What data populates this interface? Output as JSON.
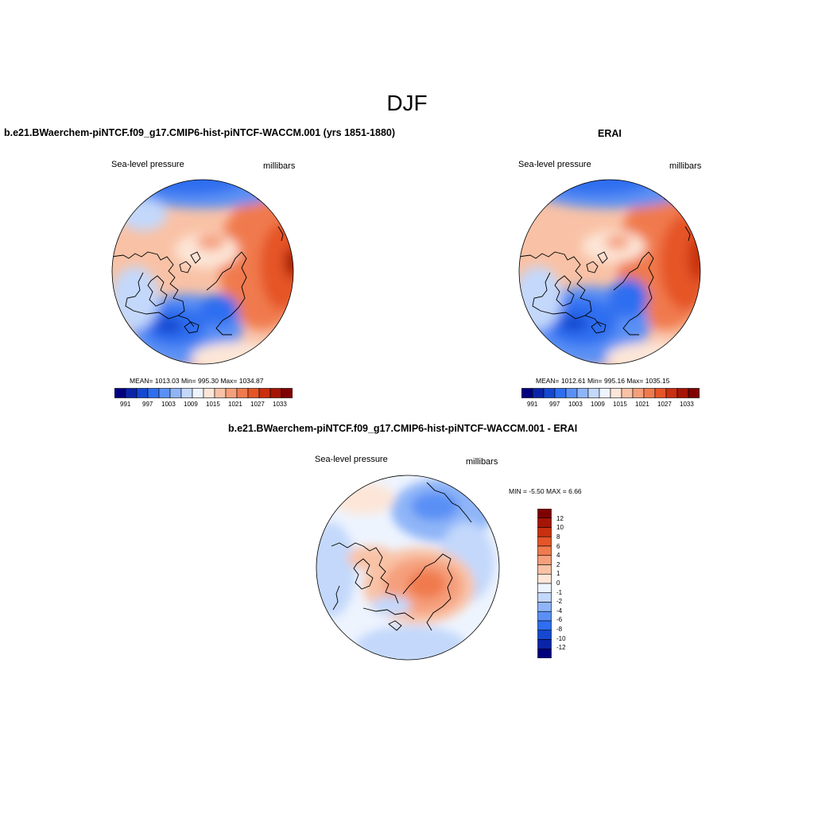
{
  "season": "DJF",
  "panels": [
    {
      "title": "b.e21.BWaerchem-piNTCF.f09_g17.CMIP6-hist-piNTCF-WACCM.001 (yrs 1851-1880)",
      "left_string": "Sea-level pressure",
      "right_string": "millibars",
      "stats": "MEAN= 1013.03   Min= 995.30   Max= 1034.87",
      "colorbar_labels": [
        "991",
        "997",
        "1003",
        "1009",
        "1015",
        "1021",
        "1027",
        "1033"
      ]
    },
    {
      "title": "ERAI",
      "left_string": "Sea-level pressure",
      "right_string": "millibars",
      "stats": "MEAN= 1012.61   Min= 995.16   Max= 1035.15",
      "colorbar_labels": [
        "991",
        "997",
        "1003",
        "1009",
        "1015",
        "1021",
        "1027",
        "1033"
      ]
    },
    {
      "title": "b.e21.BWaerchem-piNTCF.f09_g17.CMIP6-hist-piNTCF-WACCM.001 - ERAI",
      "left_string": "Sea-level pressure",
      "right_string": "millibars",
      "stats": "MIN =  -5.50 MAX =   6.66",
      "colorbar_labels": [
        "12",
        "10",
        "8",
        "6",
        "4",
        "2",
        "1",
        "0",
        "-1",
        "-2",
        "-4",
        "-6",
        "-8",
        "-10",
        "-12"
      ]
    }
  ],
  "colors": {
    "abs_scale": [
      "#00007f",
      "#0a24a8",
      "#1548d0",
      "#2e6ef0",
      "#5a90f5",
      "#8fb5f8",
      "#c3d8fb",
      "#eef4fe",
      "#fde6d8",
      "#f9c2a6",
      "#f59f7b",
      "#f07a4e",
      "#e55528",
      "#c8300f",
      "#a51505",
      "#7f0000"
    ],
    "diff_scale": [
      "#7f0000",
      "#a51505",
      "#c8300f",
      "#e55528",
      "#f07a4e",
      "#f59f7b",
      "#f9c2a6",
      "#fde6d8",
      "#eef4fe",
      "#c3d8fb",
      "#8fb5f8",
      "#5a90f5",
      "#2e6ef0",
      "#1548d0",
      "#0a24a8",
      "#00007f"
    ]
  }
}
